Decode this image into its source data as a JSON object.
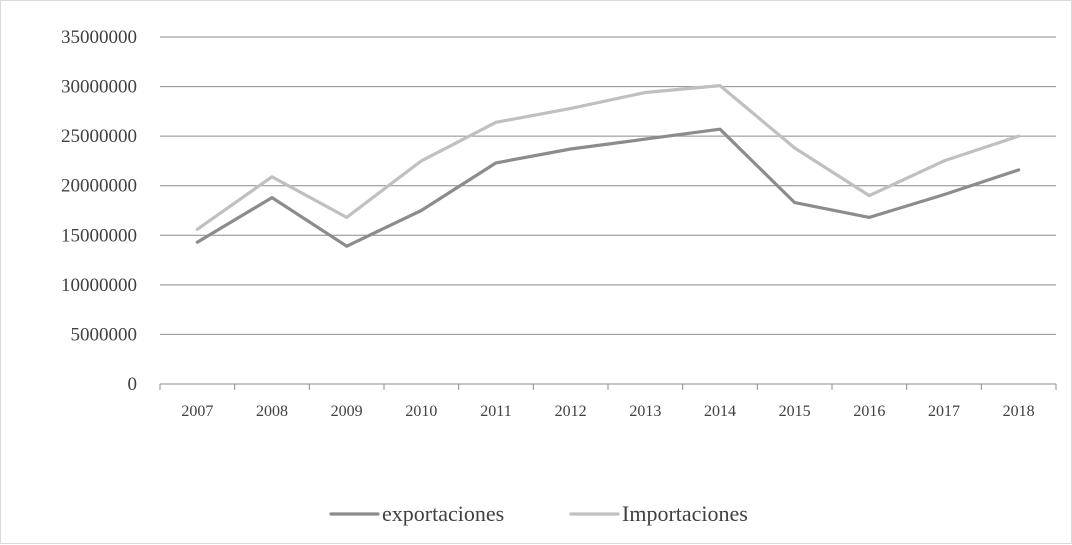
{
  "chart_data": {
    "type": "line",
    "title": "",
    "xlabel": "",
    "ylabel": "",
    "x": [
      "2007",
      "2008",
      "2009",
      "2010",
      "2011",
      "2012",
      "2013",
      "2014",
      "2015",
      "2016",
      "2017",
      "2018"
    ],
    "ylim": [
      0,
      35000000
    ],
    "yticks": [
      "0",
      "5000000",
      "10000000",
      "15000000",
      "20000000",
      "25000000",
      "30000000",
      "35000000"
    ],
    "grid": true,
    "legend_position": "bottom",
    "series": [
      {
        "name": "exportaciones",
        "color": "#8c8c8c",
        "values": [
          14300000,
          18800000,
          13900000,
          17500000,
          22300000,
          23700000,
          24700000,
          25700000,
          18300000,
          16800000,
          19100000,
          21600000
        ]
      },
      {
        "name": "Importaciones",
        "color": "#c0c0c0",
        "values": [
          15600000,
          20900000,
          16800000,
          22500000,
          26400000,
          27800000,
          29400000,
          30100000,
          23800000,
          19000000,
          22500000,
          25000000
        ]
      }
    ]
  }
}
